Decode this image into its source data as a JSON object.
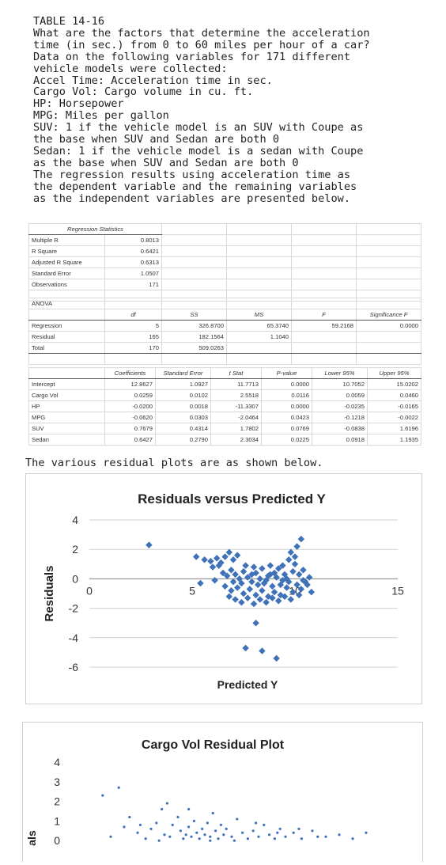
{
  "problem": {
    "lines": [
      "TABLE 14-16",
      "What are the factors that determine the acceleration",
      "time (in sec.) from 0 to 60 miles per hour of a car?",
      "Data on the following variables for 171 different",
      "vehicle models were collected:",
      "Accel Time: Acceleration time in sec.",
      "Cargo Vol: Cargo volume in cu. ft.",
      "HP: Horsepower",
      "MPG: Miles per gallon",
      "SUV: 1 if the vehicle model is an SUV with Coupe as",
      "the base when SUV and Sedan are both 0",
      "Sedan: 1 if the vehicle model is a sedan with Coupe",
      "as the base when SUV and Sedan are both 0",
      "The regression results using acceleration time as",
      "the dependent variable and the remaining variables",
      "as the independent variables are presented below."
    ]
  },
  "regression_stats": {
    "header": "Regression Statistics",
    "rows": [
      {
        "label": "Multiple R",
        "value": "0.8013"
      },
      {
        "label": "R Square",
        "value": "0.6421"
      },
      {
        "label": "Adjusted R Square",
        "value": "0.6313"
      },
      {
        "label": "Standard Error",
        "value": "1.0507"
      },
      {
        "label": "Observations",
        "value": "171"
      }
    ]
  },
  "anova": {
    "title": "ANOVA",
    "headers": [
      "df",
      "SS",
      "MS",
      "F",
      "Significance F"
    ],
    "rows": [
      {
        "label": "Regression",
        "cells": [
          "5",
          "326.8700",
          "65.3740",
          "59.2168",
          "0.0000"
        ]
      },
      {
        "label": "Residual",
        "cells": [
          "165",
          "182.1564",
          "1.1040",
          "",
          ""
        ]
      },
      {
        "label": "Total",
        "cells": [
          "170",
          "509.0263",
          "",
          "",
          ""
        ]
      }
    ]
  },
  "coefficients": {
    "headers": [
      "Coefficients",
      "Standard Error",
      "t Stat",
      "P-value",
      "Lower 95%",
      "Upper 95%"
    ],
    "rows": [
      {
        "label": "Intercept",
        "cells": [
          "12.8627",
          "1.0927",
          "11.7713",
          "0.0000",
          "10.7052",
          "15.0202"
        ]
      },
      {
        "label": "Cargo Vol",
        "cells": [
          "0.0259",
          "0.0102",
          "2.5518",
          "0.0116",
          "0.0059",
          "0.0460"
        ]
      },
      {
        "label": "HP",
        "cells": [
          "-0.0200",
          "0.0018",
          "-11.3307",
          "0.0000",
          "-0.0235",
          "-0.0165"
        ]
      },
      {
        "label": "MPG",
        "cells": [
          "-0.0620",
          "0.0303",
          "-2.0464",
          "0.0423",
          "-0.1218",
          "-0.0022"
        ]
      },
      {
        "label": "SUV",
        "cells": [
          "0.7679",
          "0.4314",
          "1.7802",
          "0.0769",
          "-0.0838",
          "1.6196"
        ]
      },
      {
        "label": "Sedan",
        "cells": [
          "0.6427",
          "0.2790",
          "2.3034",
          "0.0225",
          "0.0918",
          "1.1935"
        ]
      }
    ]
  },
  "caption": "The various residual plots are as shown below.",
  "chart_data": [
    {
      "type": "scatter",
      "title": "Residuals versus Predicted Y",
      "xlabel": "Predicted Y",
      "ylabel": "Residuals",
      "xlim": [
        0,
        15
      ],
      "ylim": [
        -6,
        4
      ],
      "xticks": [
        "0",
        "5",
        "10",
        "15"
      ],
      "yticks": [
        "4",
        "2",
        "0",
        "-2",
        "-4",
        "-6"
      ],
      "grid": true,
      "marker_color": "#3f72b8",
      "points": [
        [
          2.9,
          2.3
        ],
        [
          5.2,
          1.5
        ],
        [
          5.6,
          1.3
        ],
        [
          5.9,
          1.2
        ],
        [
          6.2,
          1.4
        ],
        [
          6.4,
          1.1
        ],
        [
          6.6,
          1.5
        ],
        [
          6.8,
          1.8
        ],
        [
          7.0,
          1.3
        ],
        [
          7.2,
          1.6
        ],
        [
          6.0,
          0.8
        ],
        [
          6.3,
          0.9
        ],
        [
          6.5,
          0.4
        ],
        [
          6.7,
          0.2
        ],
        [
          6.9,
          0.6
        ],
        [
          7.1,
          0.3
        ],
        [
          7.3,
          0.0
        ],
        [
          7.5,
          0.5
        ],
        [
          7.7,
          0.1
        ],
        [
          7.9,
          -0.2
        ],
        [
          8.1,
          0.4
        ],
        [
          8.3,
          0.0
        ],
        [
          8.5,
          -0.3
        ],
        [
          8.7,
          0.2
        ],
        [
          8.9,
          -0.5
        ],
        [
          9.1,
          0.1
        ],
        [
          9.3,
          -0.4
        ],
        [
          9.5,
          0.3
        ],
        [
          9.7,
          -0.2
        ],
        [
          9.9,
          0.5
        ],
        [
          6.6,
          -0.5
        ],
        [
          6.9,
          -0.8
        ],
        [
          7.2,
          -0.6
        ],
        [
          7.5,
          -1.0
        ],
        [
          7.8,
          -0.7
        ],
        [
          8.1,
          -1.1
        ],
        [
          8.4,
          -0.8
        ],
        [
          8.7,
          -1.2
        ],
        [
          9.0,
          -0.9
        ],
        [
          9.3,
          -1.1
        ],
        [
          9.6,
          -0.6
        ],
        [
          9.9,
          -0.9
        ],
        [
          10.1,
          -0.4
        ],
        [
          10.3,
          -0.7
        ],
        [
          10.5,
          -0.2
        ],
        [
          10.2,
          0.3
        ],
        [
          10.4,
          0.6
        ],
        [
          10.0,
          1.0
        ],
        [
          9.7,
          1.3
        ],
        [
          9.4,
          0.9
        ],
        [
          9.8,
          1.8
        ],
        [
          10.1,
          2.2
        ],
        [
          10.3,
          2.7
        ],
        [
          10.0,
          1.5
        ],
        [
          9.2,
          0.7
        ],
        [
          8.8,
          0.9
        ],
        [
          8.4,
          0.7
        ],
        [
          8.0,
          0.8
        ],
        [
          7.6,
          0.9
        ],
        [
          7.4,
          -0.3
        ],
        [
          7.0,
          -0.2
        ],
        [
          6.8,
          -1.2
        ],
        [
          7.1,
          -1.4
        ],
        [
          7.4,
          -1.6
        ],
        [
          7.7,
          -1.3
        ],
        [
          8.0,
          -1.7
        ],
        [
          8.3,
          -1.4
        ],
        [
          8.6,
          -1.6
        ],
        [
          8.9,
          -1.3
        ],
        [
          9.2,
          -1.5
        ],
        [
          9.5,
          -1.2
        ],
        [
          9.8,
          -1.4
        ],
        [
          10.2,
          -1.1
        ],
        [
          10.6,
          -0.4
        ],
        [
          10.8,
          -0.9
        ],
        [
          10.7,
          0.1
        ],
        [
          8.2,
          -0.4
        ],
        [
          8.6,
          -0.1
        ],
        [
          9.0,
          0.4
        ],
        [
          9.4,
          -0.1
        ],
        [
          5.4,
          -0.3
        ],
        [
          6.1,
          -0.1
        ],
        [
          7.9,
          0.3
        ],
        [
          8.8,
          0.3
        ],
        [
          9.6,
          0.0
        ],
        [
          10.4,
          -0.1
        ],
        [
          8.1,
          -3.0
        ],
        [
          7.6,
          -4.7
        ],
        [
          8.4,
          -4.9
        ],
        [
          9.1,
          -5.4
        ]
      ]
    },
    {
      "type": "scatter",
      "title": "Cargo Vol Residual Plot",
      "xlabel": "",
      "ylabel": "als",
      "ylim": [
        -1,
        4
      ],
      "yticks": [
        "4",
        "3",
        "2",
        "1",
        "0"
      ],
      "marker_color": "#3f72b8",
      "points": [
        [
          0.12,
          2.3
        ],
        [
          0.18,
          2.7
        ],
        [
          0.22,
          1.2
        ],
        [
          0.25,
          0.4
        ],
        [
          0.28,
          0.1
        ],
        [
          0.3,
          0.6
        ],
        [
          0.32,
          0.9
        ],
        [
          0.34,
          1.6
        ],
        [
          0.35,
          0.3
        ],
        [
          0.37,
          0.2
        ],
        [
          0.38,
          0.8
        ],
        [
          0.4,
          1.2
        ],
        [
          0.41,
          0.5
        ],
        [
          0.42,
          0.1
        ],
        [
          0.43,
          0.3
        ],
        [
          0.44,
          0.7
        ],
        [
          0.45,
          0.2
        ],
        [
          0.46,
          1.0
        ],
        [
          0.47,
          0.4
        ],
        [
          0.48,
          0.1
        ],
        [
          0.49,
          0.6
        ],
        [
          0.5,
          0.3
        ],
        [
          0.51,
          0.9
        ],
        [
          0.52,
          0.2
        ],
        [
          0.53,
          1.4
        ],
        [
          0.54,
          0.5
        ],
        [
          0.55,
          0.1
        ],
        [
          0.56,
          0.8
        ],
        [
          0.57,
          0.3
        ],
        [
          0.58,
          0.6
        ],
        [
          0.6,
          0.2
        ],
        [
          0.62,
          1.1
        ],
        [
          0.64,
          0.4
        ],
        [
          0.66,
          0.1
        ],
        [
          0.68,
          0.5
        ],
        [
          0.7,
          0.2
        ],
        [
          0.72,
          0.8
        ],
        [
          0.74,
          0.3
        ],
        [
          0.76,
          0.1
        ],
        [
          0.78,
          0.6
        ],
        [
          0.8,
          0.2
        ],
        [
          0.83,
          0.4
        ],
        [
          0.86,
          0.1
        ],
        [
          0.9,
          0.5
        ],
        [
          0.95,
          0.2
        ],
        [
          1.0,
          0.3
        ],
        [
          1.05,
          0.1
        ],
        [
          1.1,
          0.4
        ],
        [
          0.15,
          0.2
        ],
        [
          0.2,
          0.7
        ],
        [
          0.36,
          1.9
        ],
        [
          0.44,
          1.6
        ],
        [
          0.52,
          0.0
        ],
        [
          0.61,
          0.0
        ],
        [
          0.69,
          0.9
        ],
        [
          0.77,
          0.4
        ],
        [
          0.85,
          0.6
        ],
        [
          0.92,
          0.2
        ],
        [
          0.26,
          0.8
        ],
        [
          0.33,
          0.0
        ]
      ]
    }
  ]
}
